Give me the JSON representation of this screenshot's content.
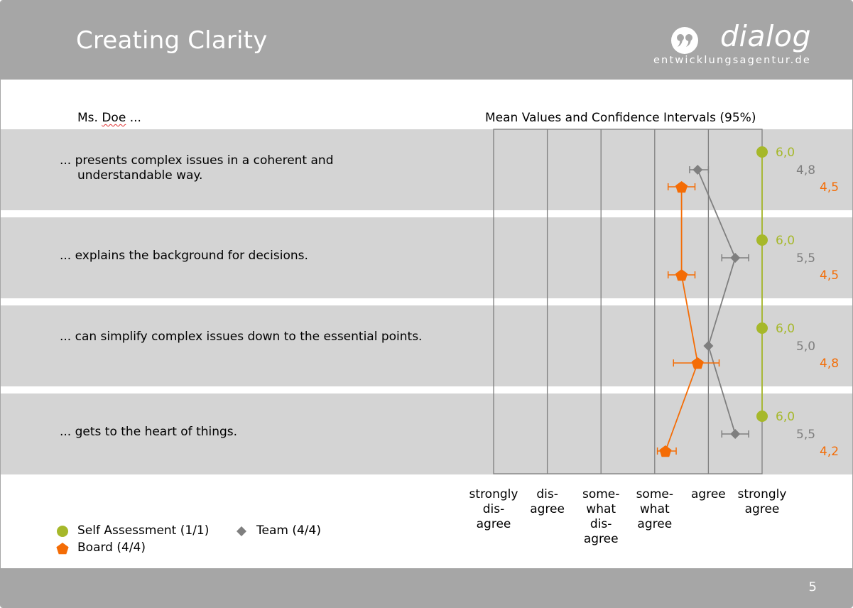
{
  "header": {
    "title": "Creating Clarity",
    "logo": {
      "word": "dialog",
      "subtitle": "entwicklungsagentur.de",
      "icon": "quote-marks-icon"
    }
  },
  "subject": {
    "prefix": "Ms.",
    "name": "Doe",
    "suffix": "..."
  },
  "footer": {
    "page_number": "5"
  },
  "colors": {
    "self": "#a6b82a",
    "team": "#7f7f7f",
    "board": "#f46c05",
    "band": "#d4d4d4",
    "header": "#a6a6a6"
  },
  "chart_data": {
    "type": "dot-plot-with-confidence-intervals",
    "title": "Mean Values and Confidence Intervals (95%)",
    "scale": {
      "min": 1,
      "max": 6,
      "labels": [
        [
          "strongly",
          "dis-",
          "agree"
        ],
        [
          "dis-",
          "agree"
        ],
        [
          "some-",
          "what",
          "dis-",
          "agree"
        ],
        [
          "some-",
          "what",
          "agree"
        ],
        [
          "agree"
        ],
        [
          "strongly",
          "agree"
        ]
      ]
    },
    "items": [
      {
        "text": "... presents complex issues in a coherent and understandable way."
      },
      {
        "text": "... explains the background for decisions."
      },
      {
        "text": "... can simplify complex issues down to the essential points."
      },
      {
        "text": "... gets to the heart of things."
      }
    ],
    "series": [
      {
        "name": "Self Assessment (1/1)",
        "marker": "circle",
        "color": "#a6b82a",
        "values": [
          6.0,
          6.0,
          6.0,
          6.0
        ],
        "value_labels": [
          "6,0",
          "6,0",
          "6,0",
          "6,0"
        ],
        "ci": [
          null,
          null,
          null,
          null
        ]
      },
      {
        "name": "Team (4/4)",
        "marker": "diamond",
        "color": "#7f7f7f",
        "values": [
          4.8,
          5.5,
          5.0,
          5.5
        ],
        "value_labels": [
          "4,8",
          "5,5",
          "5,0",
          "5,5"
        ],
        "ci": [
          [
            4.65,
            5.0
          ],
          [
            5.25,
            5.75
          ],
          null,
          [
            5.25,
            5.75
          ]
        ]
      },
      {
        "name": "Board (4/4)",
        "marker": "pentagon",
        "color": "#f46c05",
        "values": [
          4.5,
          4.5,
          4.8,
          4.2
        ],
        "value_labels": [
          "4,5",
          "4,5",
          "4,8",
          "4,2"
        ],
        "ci": [
          [
            4.25,
            4.75
          ],
          [
            4.25,
            4.75
          ],
          [
            4.35,
            5.2
          ],
          [
            4.05,
            4.4
          ]
        ]
      }
    ],
    "legend": {
      "position": "bottom-left"
    }
  }
}
